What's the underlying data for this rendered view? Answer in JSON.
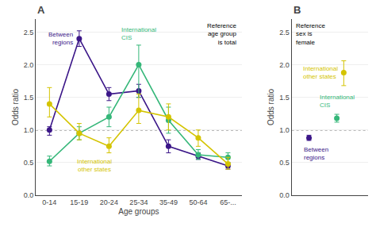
{
  "chart_data": [
    {
      "type": "line",
      "title": "A",
      "xlabel": "Age groups",
      "ylabel": "Odds ratio",
      "annotation": "Reference\nage group\nis total",
      "categories": [
        "0-14",
        "15-19",
        "20-24",
        "25-34",
        "35-49",
        "50-64",
        "65-..."
      ],
      "marker": "circle",
      "series": [
        {
          "name": "Between\nregions",
          "color": "#3b1688",
          "values": [
            1.0,
            2.4,
            1.55,
            1.6,
            0.75,
            0.6,
            0.45
          ],
          "error_minus": [
            0.08,
            0.12,
            0.1,
            0.1,
            0.1,
            0.05,
            0.05
          ],
          "error_plus": [
            0.05,
            0.12,
            0.1,
            0.1,
            0.1,
            0.05,
            0.05
          ]
        },
        {
          "name": "International\nCIS",
          "color": "#35b779",
          "values": [
            0.52,
            0.95,
            1.2,
            2.0,
            1.15,
            0.62,
            0.58
          ],
          "error_minus": [
            0.07,
            0.1,
            0.15,
            0.5,
            0.2,
            0.07,
            0.08
          ],
          "error_plus": [
            0.08,
            0.1,
            0.15,
            0.3,
            0.2,
            0.08,
            0.07
          ]
        },
        {
          "name": "International\nother states",
          "color": "#d4c400",
          "values": [
            1.4,
            0.95,
            0.75,
            1.3,
            1.2,
            0.88,
            0.48
          ],
          "error_minus": [
            0.2,
            0.1,
            0.1,
            0.2,
            0.2,
            0.13,
            0.08
          ],
          "error_plus": [
            0.25,
            0.15,
            0.13,
            0.25,
            0.2,
            0.12,
            0.1
          ]
        }
      ],
      "reference_line": 1.0,
      "ylim": [
        0.0,
        2.7
      ],
      "yticks": [
        {
          "value": 0.0,
          "label": "0.0"
        },
        0.5,
        {
          "value": 1.0,
          "label": "1.0"
        },
        1.5,
        {
          "value": 2.0,
          "label": "2.0"
        },
        2.5
      ],
      "grid": true
    },
    {
      "type": "scatter",
      "title": "B",
      "ylabel": "Odds ratio",
      "annotation": "Reference\nsex is\nfemale",
      "marker": "circle",
      "series": [
        {
          "name": "Between\nregions",
          "color": "#3b1688",
          "x": [
            0.5
          ],
          "values": [
            0.88
          ],
          "error_minus": [
            0.04
          ],
          "error_plus": [
            0.04
          ]
        },
        {
          "name": "International\nCIS",
          "color": "#35b779",
          "x": [
            1.3
          ],
          "values": [
            1.18
          ],
          "error_minus": [
            0.06
          ],
          "error_plus": [
            0.06
          ]
        },
        {
          "name": "International\nother states",
          "color": "#d4c400",
          "x": [
            1.5
          ],
          "values": [
            1.88
          ],
          "error_minus": [
            0.2
          ],
          "error_plus": [
            0.18
          ]
        }
      ],
      "reference_line": 1.0,
      "xlim": [
        0.0,
        2.2
      ],
      "xticks": [],
      "ylim": [
        0.0,
        2.7
      ],
      "yticks": [
        {
          "value": 0.0,
          "label": "0.0"
        },
        0.5,
        {
          "value": 1.0,
          "label": "1.0"
        },
        1.5,
        {
          "value": 2.0,
          "label": "2.0"
        },
        2.5
      ],
      "tick_labels": "y",
      "grid": true
    }
  ]
}
